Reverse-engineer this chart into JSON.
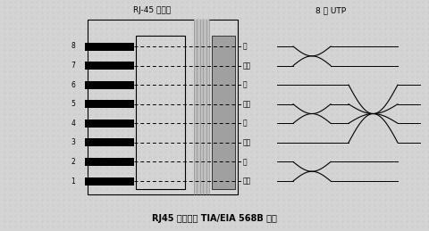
{
  "title_top_left": "RJ-45 连接器",
  "title_top_right": "8 线 UTP",
  "title_bottom": "RJ45 连接器的 TIA/EIA 568B 标准",
  "bg_color": "#d4d4d4",
  "wire_labels_left": [
    "8",
    "7",
    "6",
    "5",
    "4",
    "3",
    "2",
    "1"
  ],
  "wire_labels_right": [
    "棕",
    "白棕",
    "绿",
    "白兰",
    "兰",
    "白绿",
    "橙",
    "白橙"
  ],
  "fig_width": 4.81,
  "fig_height": 2.59,
  "dpi": 100
}
